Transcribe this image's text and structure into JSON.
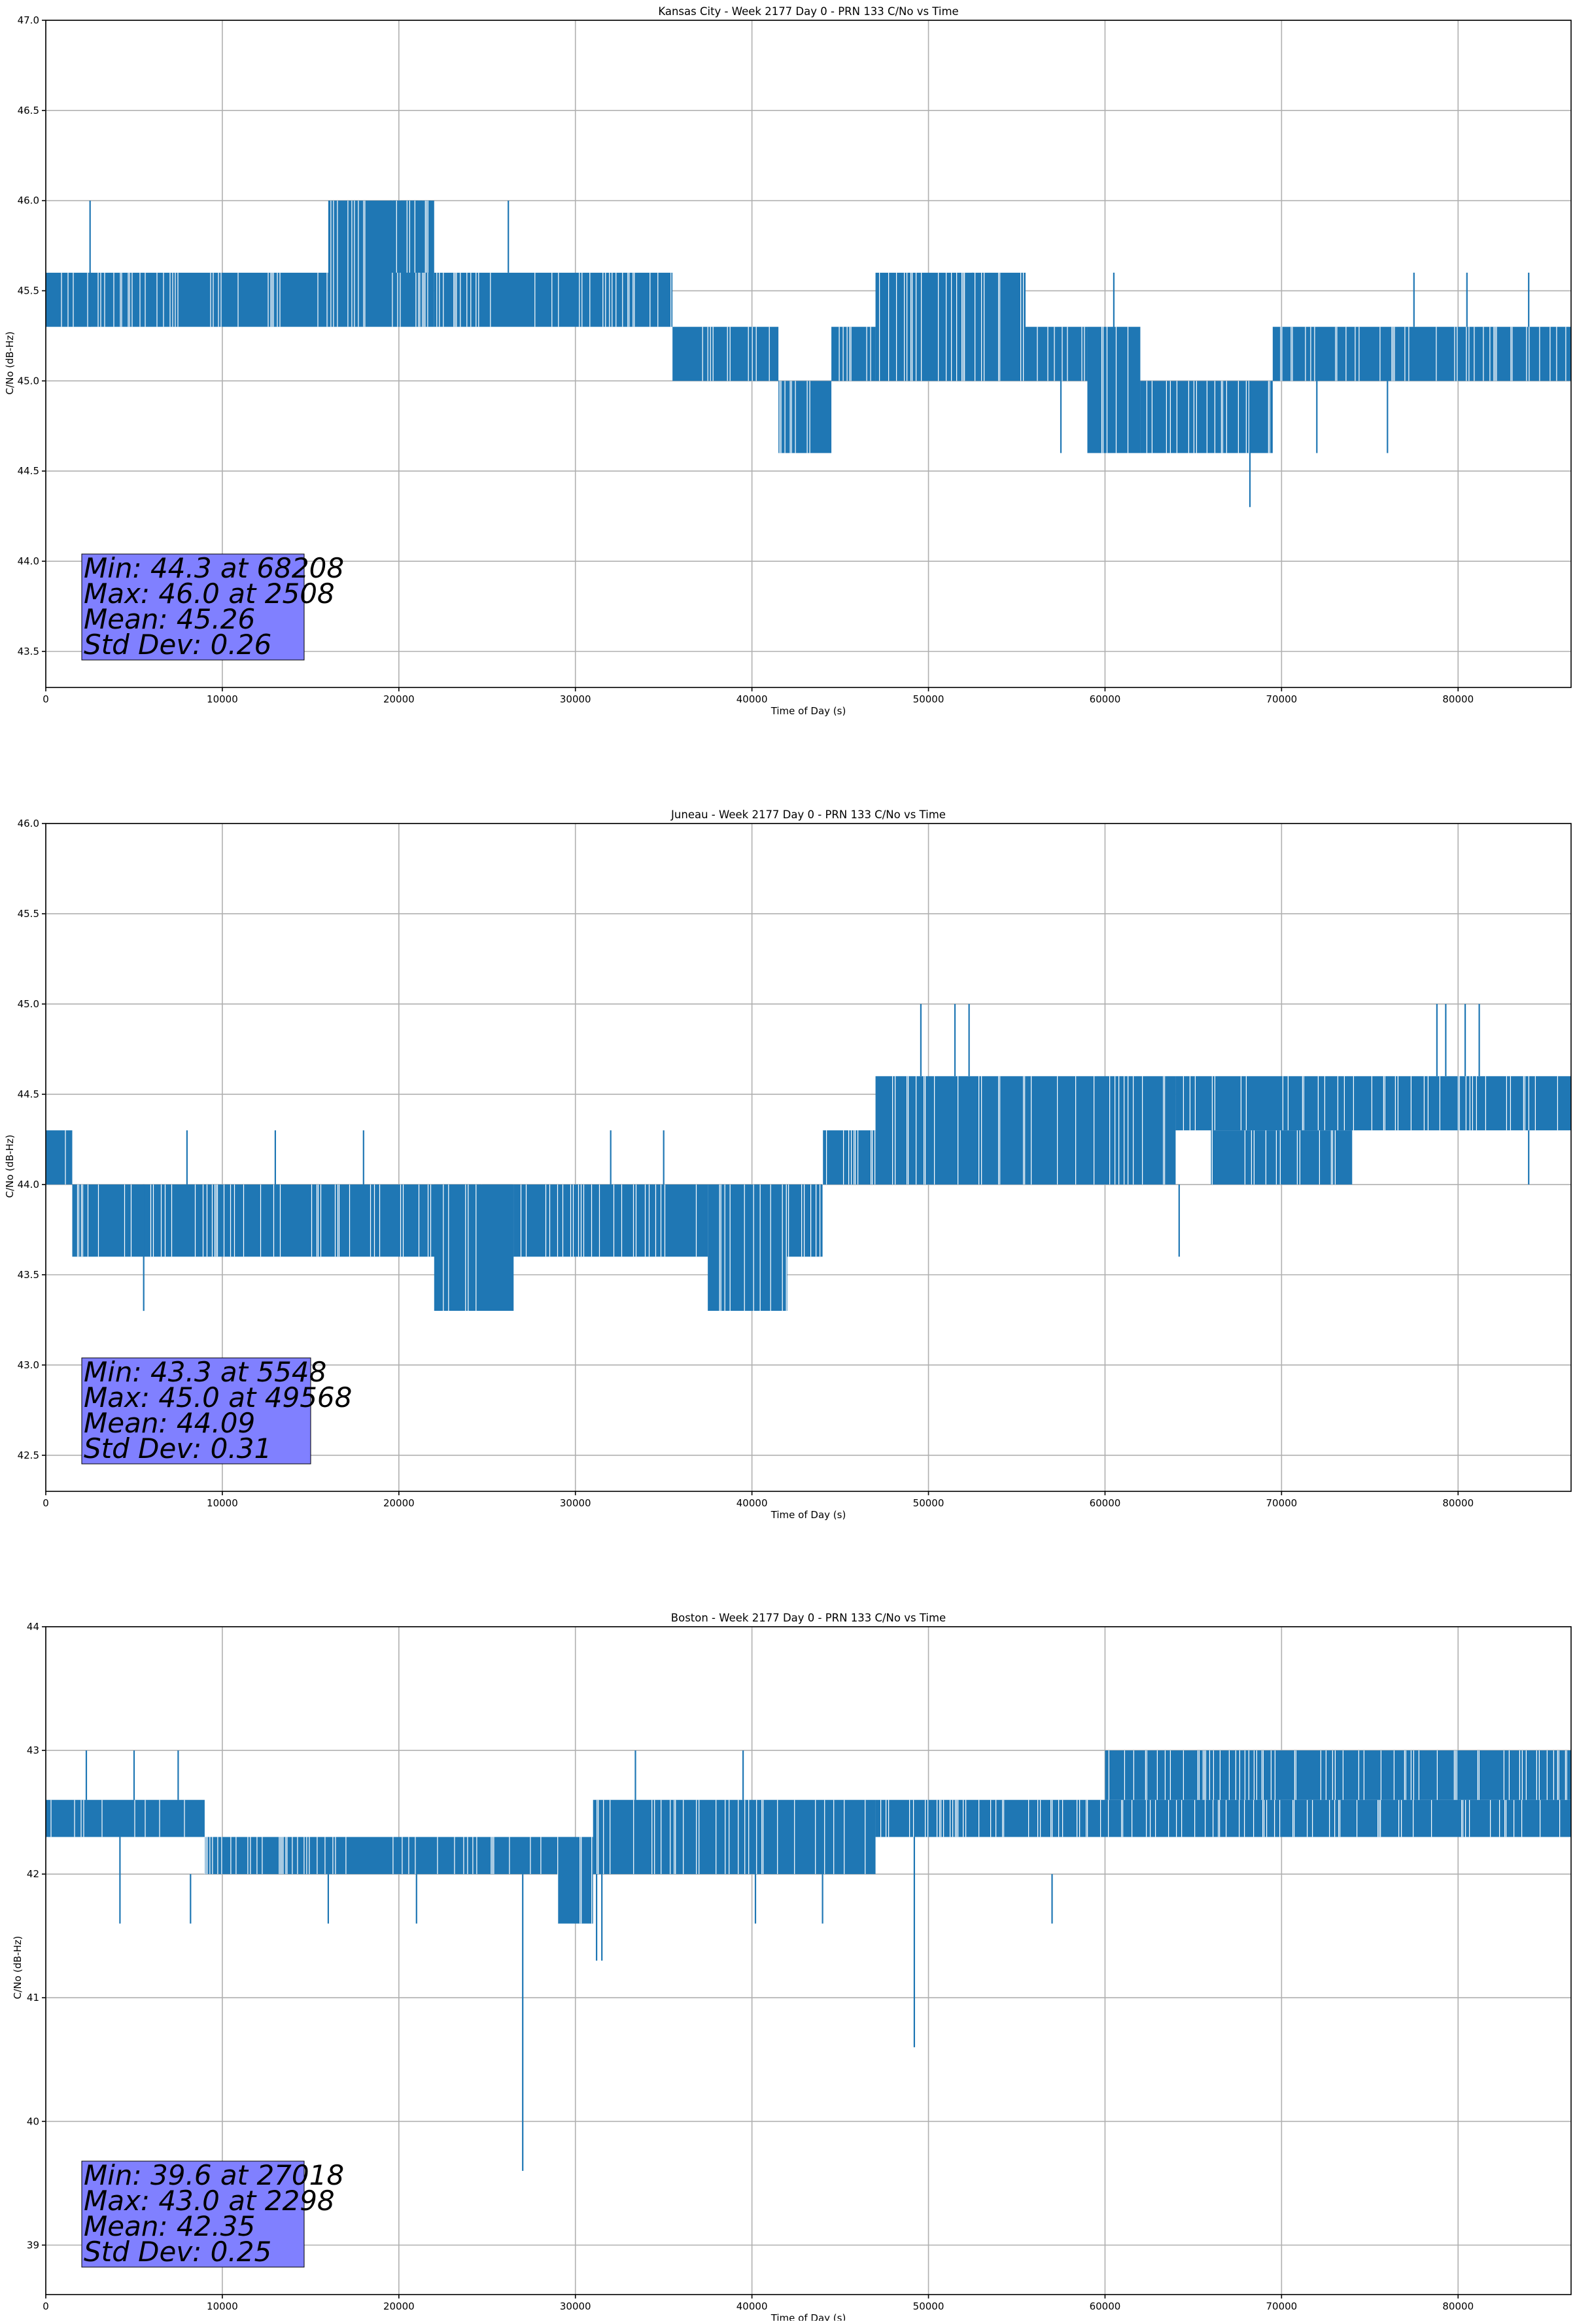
{
  "series_color": "#1f77b4",
  "stats_box_color": "#8080ff",
  "chart_data": [
    {
      "type": "line",
      "title": "Kansas City - Week 2177 Day 0 - PRN 133 C/No vs Time",
      "xlabel": "Time of Day (s)",
      "ylabel": "C/No (dB-Hz)",
      "xlim": [
        0,
        86400
      ],
      "ylim": [
        43.3,
        47.0
      ],
      "xticks": [
        0,
        10000,
        20000,
        30000,
        40000,
        50000,
        60000,
        70000,
        80000
      ],
      "yticks": [
        43.5,
        44.0,
        44.5,
        45.0,
        45.5,
        46.0,
        46.5,
        47.0
      ],
      "ytick_labels": [
        "43.5",
        "44.0",
        "44.5",
        "45.0",
        "45.5",
        "46.0",
        "46.5",
        "47.0"
      ],
      "grid": true,
      "stats": {
        "min_label": "Min: 44.3 at 68208",
        "max_label": "Max: 46.0 at 2508",
        "mean_label": "Mean: 45.26",
        "std_label": "Std Dev: 0.26"
      },
      "series": [
        {
          "segments": [
            {
              "x": [
                0,
                16000
              ],
              "lo": 45.3,
              "hi": 45.6
            },
            {
              "x": [
                16000,
                22000
              ],
              "lo": 45.3,
              "hi": 46.0
            },
            {
              "x": [
                19500,
                21800
              ],
              "lo": 45.6,
              "hi": 46.0
            },
            {
              "x": [
                22000,
                35500
              ],
              "lo": 45.3,
              "hi": 45.6
            },
            {
              "x": [
                35500,
                41500
              ],
              "lo": 45.0,
              "hi": 45.3
            },
            {
              "x": [
                41500,
                44500
              ],
              "lo": 44.6,
              "hi": 45.0
            },
            {
              "x": [
                44500,
                47000
              ],
              "lo": 45.0,
              "hi": 45.3
            },
            {
              "x": [
                47000,
                55500
              ],
              "lo": 45.0,
              "hi": 45.6
            },
            {
              "x": [
                55500,
                59000
              ],
              "lo": 45.0,
              "hi": 45.3
            },
            {
              "x": [
                59000,
                62000
              ],
              "lo": 44.6,
              "hi": 45.3
            },
            {
              "x": [
                62000,
                69500
              ],
              "lo": 44.6,
              "hi": 45.0
            },
            {
              "x": [
                69500,
                86400
              ],
              "lo": 45.0,
              "hi": 45.3
            }
          ],
          "spikes": [
            {
              "x": 2508,
              "lo": 45.3,
              "hi": 46.0
            },
            {
              "x": 26200,
              "lo": 45.6,
              "hi": 46.0
            },
            {
              "x": 68208,
              "lo": 44.3,
              "hi": 45.0
            },
            {
              "x": 57500,
              "lo": 44.6,
              "hi": 45.0
            },
            {
              "x": 52500,
              "lo": 45.0,
              "hi": 45.6
            },
            {
              "x": 60500,
              "lo": 45.0,
              "hi": 45.6
            },
            {
              "x": 77500,
              "lo": 45.3,
              "hi": 45.6
            },
            {
              "x": 80500,
              "lo": 45.3,
              "hi": 45.6
            },
            {
              "x": 84000,
              "lo": 45.3,
              "hi": 45.6
            },
            {
              "x": 72000,
              "lo": 44.6,
              "hi": 45.0
            },
            {
              "x": 76000,
              "lo": 44.6,
              "hi": 45.0
            }
          ]
        }
      ]
    },
    {
      "type": "line",
      "title": "Juneau - Week 2177 Day 0 - PRN 133 C/No vs Time",
      "xlabel": "Time of Day (s)",
      "ylabel": "C/No (dB-Hz)",
      "xlim": [
        0,
        86400
      ],
      "ylim": [
        42.3,
        46.0
      ],
      "xticks": [
        0,
        10000,
        20000,
        30000,
        40000,
        50000,
        60000,
        70000,
        80000
      ],
      "yticks": [
        42.5,
        43.0,
        43.5,
        44.0,
        44.5,
        45.0,
        45.5,
        46.0
      ],
      "ytick_labels": [
        "42.5",
        "43.0",
        "43.5",
        "44.0",
        "44.5",
        "45.0",
        "45.5",
        "46.0"
      ],
      "grid": true,
      "stats": {
        "min_label": "Min: 43.3 at 5548",
        "max_label": "Max: 45.0 at 49568",
        "mean_label": "Mean: 44.09",
        "std_label": "Std Dev: 0.31"
      },
      "series": [
        {
          "segments": [
            {
              "x": [
                0,
                1500
              ],
              "lo": 44.0,
              "hi": 44.3
            },
            {
              "x": [
                1500,
                37500
              ],
              "lo": 43.6,
              "hi": 44.0
            },
            {
              "x": [
                22000,
                26500
              ],
              "lo": 43.3,
              "hi": 44.0
            },
            {
              "x": [
                37500,
                42000
              ],
              "lo": 43.3,
              "hi": 44.0
            },
            {
              "x": [
                42000,
                44000
              ],
              "lo": 43.6,
              "hi": 44.0
            },
            {
              "x": [
                44000,
                47000
              ],
              "lo": 44.0,
              "hi": 44.3
            },
            {
              "x": [
                47000,
                64000
              ],
              "lo": 44.0,
              "hi": 44.6
            },
            {
              "x": [
                64000,
                86400
              ],
              "lo": 44.3,
              "hi": 44.6
            },
            {
              "x": [
                66000,
                74000
              ],
              "lo": 44.0,
              "hi": 44.3
            }
          ],
          "spikes": [
            {
              "x": 5548,
              "lo": 43.3,
              "hi": 44.0
            },
            {
              "x": 49568,
              "lo": 44.6,
              "hi": 45.0
            },
            {
              "x": 51500,
              "lo": 44.6,
              "hi": 45.0
            },
            {
              "x": 52300,
              "lo": 44.6,
              "hi": 45.0
            },
            {
              "x": 64200,
              "lo": 43.6,
              "hi": 44.0
            },
            {
              "x": 78800,
              "lo": 44.6,
              "hi": 45.0
            },
            {
              "x": 79300,
              "lo": 44.6,
              "hi": 45.0
            },
            {
              "x": 80400,
              "lo": 44.6,
              "hi": 45.0
            },
            {
              "x": 81200,
              "lo": 44.6,
              "hi": 45.0
            },
            {
              "x": 8000,
              "lo": 44.0,
              "hi": 44.3
            },
            {
              "x": 13000,
              "lo": 44.0,
              "hi": 44.3
            },
            {
              "x": 18000,
              "lo": 44.0,
              "hi": 44.3
            },
            {
              "x": 32000,
              "lo": 44.0,
              "hi": 44.3
            },
            {
              "x": 35000,
              "lo": 44.0,
              "hi": 44.3
            },
            {
              "x": 84000,
              "lo": 44.0,
              "hi": 44.3
            }
          ]
        }
      ]
    },
    {
      "type": "line",
      "title": "Boston - Week 2177 Day 0 - PRN 133 C/No vs Time",
      "xlabel": "Time of Day (s)",
      "ylabel": "C/No (dB-Hz)",
      "xlim": [
        0,
        86400
      ],
      "ylim": [
        38.6,
        44.0
      ],
      "xticks": [
        0,
        10000,
        20000,
        30000,
        40000,
        50000,
        60000,
        70000,
        80000
      ],
      "yticks": [
        39,
        40,
        41,
        42,
        43,
        44
      ],
      "ytick_labels": [
        "39",
        "40",
        "41",
        "42",
        "43",
        "44"
      ],
      "grid": true,
      "stats": {
        "min_label": "Min: 39.6 at 27018",
        "max_label": "Max: 43.0 at 2298",
        "mean_label": "Mean: 42.35",
        "std_label": "Std Dev: 0.25"
      },
      "series": [
        {
          "segments": [
            {
              "x": [
                0,
                9000
              ],
              "lo": 42.3,
              "hi": 42.6
            },
            {
              "x": [
                9000,
                30000
              ],
              "lo": 42.0,
              "hi": 42.3
            },
            {
              "x": [
                29000,
                31000
              ],
              "lo": 41.6,
              "hi": 42.3
            },
            {
              "x": [
                31000,
                47000
              ],
              "lo": 42.0,
              "hi": 42.6
            },
            {
              "x": [
                47000,
                86400
              ],
              "lo": 42.3,
              "hi": 42.6
            },
            {
              "x": [
                60000,
                86400
              ],
              "lo": 42.6,
              "hi": 43.0
            }
          ],
          "spikes": [
            {
              "x": 27018,
              "lo": 39.6,
              "hi": 42.0
            },
            {
              "x": 49200,
              "lo": 40.6,
              "hi": 42.3
            },
            {
              "x": 31200,
              "lo": 41.3,
              "hi": 42.0
            },
            {
              "x": 31500,
              "lo": 41.3,
              "hi": 42.0
            },
            {
              "x": 2298,
              "lo": 42.6,
              "hi": 43.0
            },
            {
              "x": 5000,
              "lo": 42.6,
              "hi": 43.0
            },
            {
              "x": 7500,
              "lo": 42.6,
              "hi": 43.0
            },
            {
              "x": 33400,
              "lo": 42.6,
              "hi": 43.0
            },
            {
              "x": 39500,
              "lo": 42.6,
              "hi": 43.0
            },
            {
              "x": 4200,
              "lo": 41.6,
              "hi": 42.3
            },
            {
              "x": 8200,
              "lo": 41.6,
              "hi": 42.0
            },
            {
              "x": 16000,
              "lo": 41.6,
              "hi": 42.0
            },
            {
              "x": 21000,
              "lo": 41.6,
              "hi": 42.0
            },
            {
              "x": 40200,
              "lo": 41.6,
              "hi": 42.0
            },
            {
              "x": 44000,
              "lo": 41.6,
              "hi": 42.0
            },
            {
              "x": 57000,
              "lo": 41.6,
              "hi": 42.0
            }
          ]
        }
      ]
    }
  ]
}
